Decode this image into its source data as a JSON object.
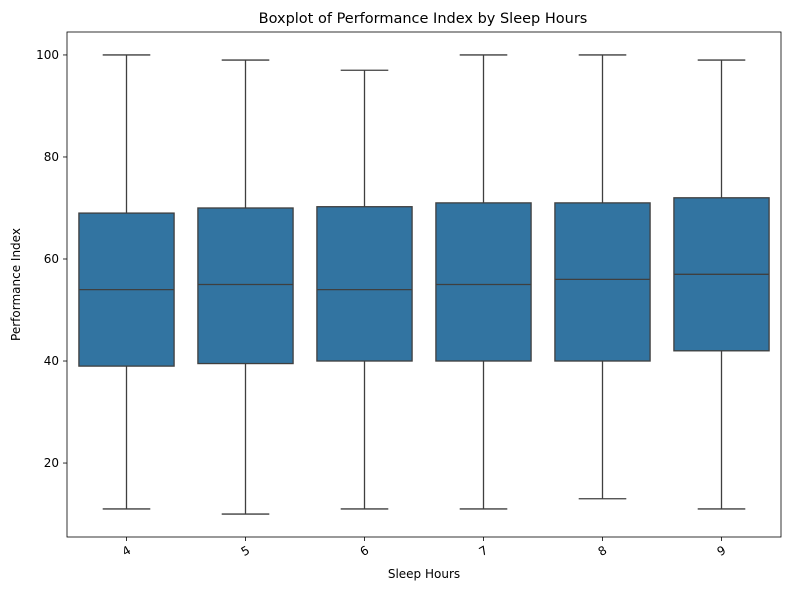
{
  "chart_data": {
    "type": "boxplot",
    "title": "Boxplot of Performance Index by Sleep Hours",
    "xlabel": "Sleep Hours",
    "ylabel": "Performance Index",
    "categories": [
      "4",
      "5",
      "6",
      "7",
      "8",
      "9"
    ],
    "boxes": [
      {
        "category": "4",
        "whisker_low": 11,
        "q1": 39,
        "median": 54,
        "q3": 69,
        "whisker_high": 100
      },
      {
        "category": "5",
        "whisker_low": 10,
        "q1": 39.5,
        "median": 55,
        "q3": 70,
        "whisker_high": 99
      },
      {
        "category": "6",
        "whisker_low": 11,
        "q1": 40,
        "median": 54,
        "q3": 70.25,
        "whisker_high": 97
      },
      {
        "category": "7",
        "whisker_low": 11,
        "q1": 40,
        "median": 55,
        "q3": 71,
        "whisker_high": 100
      },
      {
        "category": "8",
        "whisker_low": 13,
        "q1": 40,
        "median": 56,
        "q3": 71,
        "whisker_high": 100
      },
      {
        "category": "9",
        "whisker_low": 11,
        "q1": 42,
        "median": 57,
        "q3": 72,
        "whisker_high": 99
      }
    ],
    "yticks": [
      20,
      40,
      60,
      80,
      100
    ],
    "ylim": [
      5.5,
      104.5
    ],
    "box_color": "#3274a1",
    "line_color": "#3f3f3f",
    "grid": false,
    "legend": false,
    "xtick_rotation": -30
  }
}
